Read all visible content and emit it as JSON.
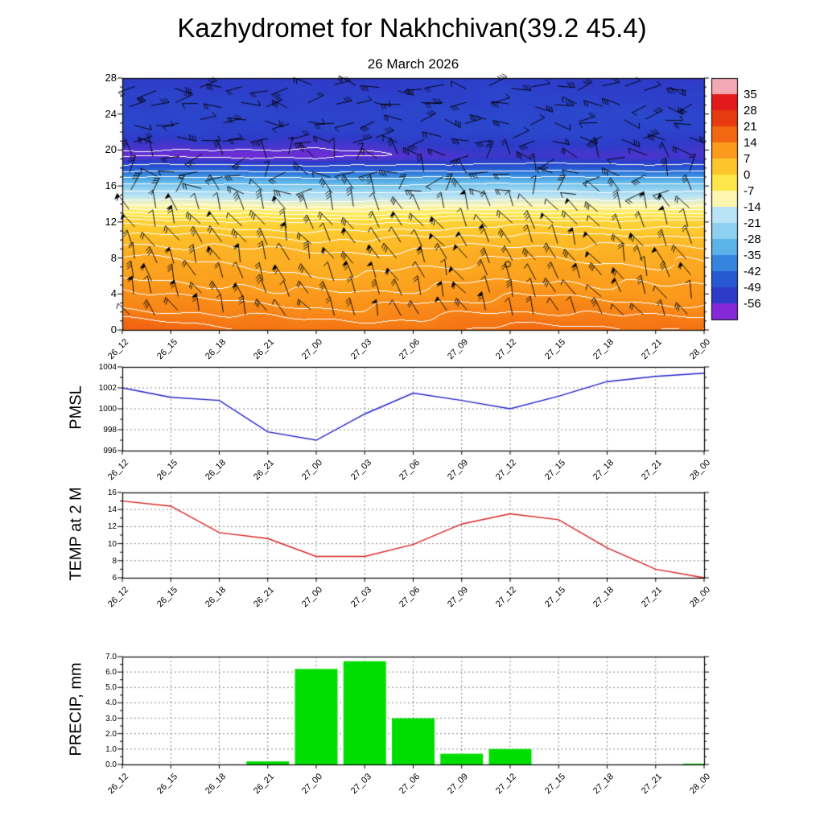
{
  "title": "Kazhydromet for Nakhchivan(39.2 45.4)",
  "subtitle": "26 March 2026",
  "time_labels": [
    "26_12",
    "26_15",
    "26_18",
    "26_21",
    "27_00",
    "27_03",
    "27_06",
    "27_09",
    "27_12",
    "27_15",
    "27_18",
    "27_21",
    "28_00"
  ],
  "chart_data": [
    {
      "type": "heatmap",
      "id": "temperature-height-cross-section",
      "x": [
        "26_12",
        "26_15",
        "26_18",
        "26_21",
        "27_00",
        "27_03",
        "27_06",
        "27_09",
        "27_12",
        "27_15",
        "27_18",
        "27_21",
        "28_00"
      ],
      "y_ticks": [
        0,
        4,
        8,
        12,
        16,
        20,
        24,
        28
      ],
      "y_range": [
        0,
        28
      ],
      "heights": [
        0,
        2,
        4,
        6,
        8,
        10,
        12,
        13,
        14,
        15,
        16,
        17,
        18,
        19,
        19.5,
        20.5,
        22,
        24,
        26,
        28
      ],
      "values": [
        [
          18,
          17.5,
          16.5,
          16,
          15,
          15,
          15.5,
          16,
          16.5,
          16.5,
          16.5,
          16,
          16
        ],
        [
          14.5,
          14,
          13.5,
          13,
          12.5,
          12.5,
          13,
          13.5,
          14,
          14,
          13.5,
          13,
          13
        ],
        [
          12,
          11.5,
          11,
          10.5,
          10,
          10,
          10.5,
          11,
          11.5,
          11.5,
          11,
          10.5,
          10.5
        ],
        [
          10,
          9.5,
          9,
          8.5,
          8,
          8,
          8.5,
          9,
          9.5,
          9.5,
          9,
          9,
          9
        ],
        [
          8,
          7.8,
          7.5,
          7,
          6.5,
          6.5,
          7,
          7.5,
          7.8,
          7.8,
          7.5,
          7.5,
          7.5
        ],
        [
          5.5,
          5.2,
          5,
          4.5,
          4,
          4,
          4.5,
          5,
          5.2,
          5.2,
          5,
          5,
          5
        ],
        [
          1,
          0.8,
          0.5,
          0,
          -0.5,
          -0.5,
          0,
          0.5,
          0.8,
          0.8,
          0.5,
          0.5,
          0.5
        ],
        [
          -4,
          -4.2,
          -4.5,
          -5,
          -5.5,
          -5.5,
          -5,
          -4.5,
          -4.2,
          -4.2,
          -4.5,
          -4.5,
          -4.5
        ],
        [
          -11,
          -11,
          -11.5,
          -12,
          -12.5,
          -12.5,
          -12,
          -11.5,
          -11,
          -11,
          -11.5,
          -11.5,
          -11.5
        ],
        [
          -18,
          -18,
          -18.5,
          -19,
          -19.5,
          -19.5,
          -19,
          -18.5,
          -18,
          -18,
          -18.5,
          -18.5,
          -18.5
        ],
        [
          -26,
          -26,
          -26.5,
          -27,
          -27.5,
          -27.5,
          -27,
          -26.5,
          -26,
          -26,
          -26.5,
          -26.5,
          -26.5
        ],
        [
          -35,
          -35,
          -35.5,
          -36,
          -36.5,
          -36.5,
          -36,
          -35.5,
          -35,
          -35,
          -35.5,
          -35.5,
          -35.5
        ],
        [
          -46,
          -46,
          -46,
          -46.5,
          -47,
          -47,
          -46.5,
          -46,
          -45.5,
          -45.5,
          -46,
          -46,
          -46
        ],
        [
          -55,
          -54.5,
          -55,
          -55.5,
          -56,
          -55,
          -54,
          -53.5,
          -53,
          -53,
          -53.5,
          -54,
          -54
        ],
        [
          -57.5,
          -57,
          -57.5,
          -58,
          -58,
          -56.5,
          -55,
          -54.5,
          -54,
          -54,
          -54.5,
          -55,
          -55
        ],
        [
          -54,
          -54,
          -54,
          -54.5,
          -55,
          -54,
          -53,
          -52.5,
          -52,
          -52,
          -52.5,
          -53,
          -53
        ],
        [
          -51,
          -51,
          -51,
          -51,
          -51.5,
          -51,
          -50.5,
          -50,
          -50,
          -50,
          -50,
          -50.5,
          -50.5
        ],
        [
          -50,
          -50,
          -50,
          -50.5,
          -50.5,
          -50.5,
          -50,
          -50,
          -49.5,
          -49.5,
          -50,
          -50,
          -50
        ],
        [
          -51,
          -51,
          -51,
          -51,
          -51.5,
          -51.5,
          -51,
          -51,
          -50.5,
          -51,
          -51,
          -51.5,
          -51.5
        ],
        [
          -52,
          -52,
          -52,
          -52.5,
          -52.5,
          -52.5,
          -52,
          -52,
          -51.5,
          -52,
          -52.5,
          -53,
          -53
        ]
      ],
      "contour_levels": [
        -56,
        -49,
        -42,
        -35,
        -28,
        -21,
        -14,
        -10,
        -7,
        -4,
        -2,
        0,
        2,
        4,
        6,
        8,
        10,
        12,
        14,
        16
      ],
      "color_stops": [
        [
          38,
          "#f2a9b4"
        ],
        [
          31.5,
          "#e31a1c"
        ],
        [
          24.5,
          "#e83a10"
        ],
        [
          17.5,
          "#f26711"
        ],
        [
          10.5,
          "#fb9a1c"
        ],
        [
          3.5,
          "#fdc52c"
        ],
        [
          -3.5,
          "#fde74a"
        ],
        [
          -10.5,
          "#fdf6b0"
        ],
        [
          -17.5,
          "#b8e3f6"
        ],
        [
          -24.5,
          "#8fd0f0"
        ],
        [
          -31.5,
          "#5cb3e8"
        ],
        [
          -38.5,
          "#3585de"
        ],
        [
          -45.5,
          "#2759d2"
        ],
        [
          -52.5,
          "#2e3bc8"
        ],
        [
          -59.5,
          "#8428d8"
        ]
      ],
      "colorbar_labels": [
        "35",
        "28",
        "21",
        "14",
        "7",
        "0",
        "-7",
        "-14",
        "-21",
        "-28",
        "-35",
        "-42",
        "-49",
        "-56"
      ],
      "colorbar_colors": [
        "#f2a9b4",
        "#e31a1c",
        "#e83a10",
        "#f26711",
        "#fb9a1c",
        "#fdc52c",
        "#fde74a",
        "#fdf6b0",
        "#b8e3f6",
        "#8fd0f0",
        "#5cb3e8",
        "#3585de",
        "#2759d2",
        "#2e3bc8",
        "#8428d8"
      ],
      "wind_barbs": true,
      "calm_marker": {
        "time_index": 7.95,
        "height": 7.3
      }
    },
    {
      "type": "line",
      "id": "pmsl",
      "ylabel": "PMSL",
      "color": "#2020cc",
      "x": [
        "26_12",
        "26_15",
        "26_18",
        "26_21",
        "27_00",
        "27_03",
        "27_06",
        "27_09",
        "27_12",
        "27_15",
        "27_18",
        "27_21",
        "28_00"
      ],
      "values": [
        1002.0,
        1001.1,
        1000.8,
        997.8,
        997.0,
        999.5,
        1001.5,
        1000.8,
        1000.0,
        1001.2,
        1002.6,
        1003.1,
        1003.4
      ],
      "y_range": [
        996,
        1004
      ],
      "y_ticks": [
        996,
        998,
        1000,
        1002,
        1004
      ],
      "gridlines": [
        998,
        1000,
        1002
      ],
      "minor_step": 1
    },
    {
      "type": "line",
      "id": "temp-at-2m",
      "ylabel": "TEMP at 2 M",
      "color": "#d82020",
      "x": [
        "26_12",
        "26_15",
        "26_18",
        "26_21",
        "27_00",
        "27_03",
        "27_06",
        "27_09",
        "27_12",
        "27_15",
        "27_18",
        "27_21",
        "28_00"
      ],
      "values": [
        15.0,
        14.4,
        11.3,
        10.6,
        8.5,
        8.5,
        9.9,
        12.3,
        13.5,
        12.8,
        9.5,
        7.0,
        6.0
      ],
      "y_range": [
        6,
        16
      ],
      "y_ticks": [
        6,
        8,
        10,
        12,
        14,
        16
      ],
      "gridlines": [
        8,
        10,
        12,
        14
      ],
      "minor_step": 1
    },
    {
      "type": "bar",
      "id": "precip",
      "ylabel": "PRECIP, mm",
      "color": "#00dd00",
      "x": [
        "26_12",
        "26_15",
        "26_18",
        "26_21",
        "27_00",
        "27_03",
        "27_06",
        "27_09",
        "27_12",
        "27_15",
        "27_18",
        "27_21",
        "28_00"
      ],
      "values": [
        0,
        0,
        0,
        0.2,
        6.2,
        6.7,
        3.0,
        0.7,
        1.0,
        0,
        0,
        0,
        0.05
      ],
      "y_range": [
        0,
        7
      ],
      "y_ticks": [
        "0.0",
        "1.0",
        "2.0",
        "3.0",
        "4.0",
        "5.0",
        "6.0",
        "7.0"
      ],
      "gridlines": [
        1,
        2,
        3,
        4,
        5,
        6
      ],
      "minor_step": 0.5
    }
  ]
}
